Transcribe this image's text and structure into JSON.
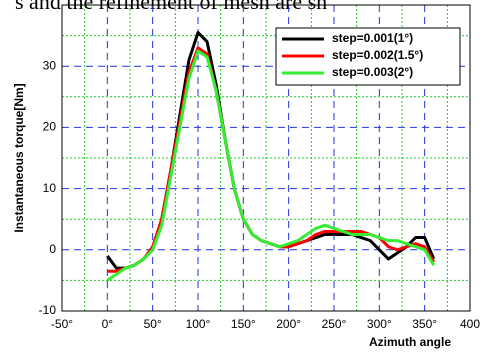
{
  "chart_data": {
    "type": "line",
    "header_text": "s and the refinement of mesh are sh",
    "ylabel": "Instantaneous torque[Nm]",
    "xlabel": "Azimuth angle",
    "x": [
      0,
      10,
      20,
      30,
      40,
      50,
      60,
      70,
      80,
      90,
      100,
      110,
      120,
      130,
      140,
      150,
      160,
      170,
      180,
      190,
      200,
      210,
      220,
      230,
      240,
      250,
      260,
      270,
      280,
      290,
      300,
      310,
      320,
      330,
      340,
      350,
      360
    ],
    "series": [
      {
        "name": "step=0.001(1°)",
        "color": "#000000",
        "values": [
          -1,
          -3,
          -3,
          -2.5,
          -1.5,
          0,
          5,
          13,
          22,
          31,
          35.5,
          34,
          27,
          18,
          10,
          5,
          2.5,
          1.5,
          1,
          0.5,
          0.5,
          1,
          1.5,
          2,
          2.5,
          2.5,
          2.5,
          2.5,
          2,
          1.5,
          0,
          -1.5,
          -0.5,
          0.5,
          2,
          2,
          -1.5
        ]
      },
      {
        "name": "step=0.002(1.5°)",
        "color": "#ff0000",
        "values": [
          -3.5,
          -3.5,
          -3,
          -2.5,
          -1.5,
          0.5,
          5,
          13,
          21,
          29,
          33,
          32,
          26,
          18,
          10,
          5,
          2.5,
          1.5,
          1,
          0.5,
          0.5,
          1,
          1.5,
          2.5,
          3,
          3,
          3,
          3,
          3,
          2.5,
          2,
          0.5,
          0,
          0.5,
          1,
          0.5,
          -2
        ]
      },
      {
        "name": "step=0.003(2°)",
        "color": "#33ee33",
        "values": [
          -5,
          -4,
          -3,
          -2.5,
          -1.5,
          0,
          4,
          12,
          20,
          28,
          32.5,
          31.5,
          26,
          18,
          10,
          5,
          2.5,
          1.5,
          1,
          0.5,
          1,
          1.5,
          2.5,
          3.5,
          4,
          3.5,
          3,
          2.5,
          2.5,
          2.5,
          2,
          1.5,
          1.5,
          1,
          0.5,
          0,
          -2.5
        ]
      }
    ],
    "xlim": [
      -50,
      400
    ],
    "xticks": [
      {
        "value": -50,
        "label": "-50°"
      },
      {
        "value": 0,
        "label": "0°"
      },
      {
        "value": 50,
        "label": "50°"
      },
      {
        "value": 100,
        "label": "100°"
      },
      {
        "value": 150,
        "label": "150°"
      },
      {
        "value": 200,
        "label": "200°"
      },
      {
        "value": 250,
        "label": "250°"
      },
      {
        "value": 300,
        "label": "300°"
      },
      {
        "value": 350,
        "label": "350°"
      },
      400
    ],
    "ylim": [
      -10,
      40
    ],
    "yticks": [
      -10,
      0,
      10,
      20,
      30
    ],
    "grid": true,
    "legend": "upper right"
  }
}
